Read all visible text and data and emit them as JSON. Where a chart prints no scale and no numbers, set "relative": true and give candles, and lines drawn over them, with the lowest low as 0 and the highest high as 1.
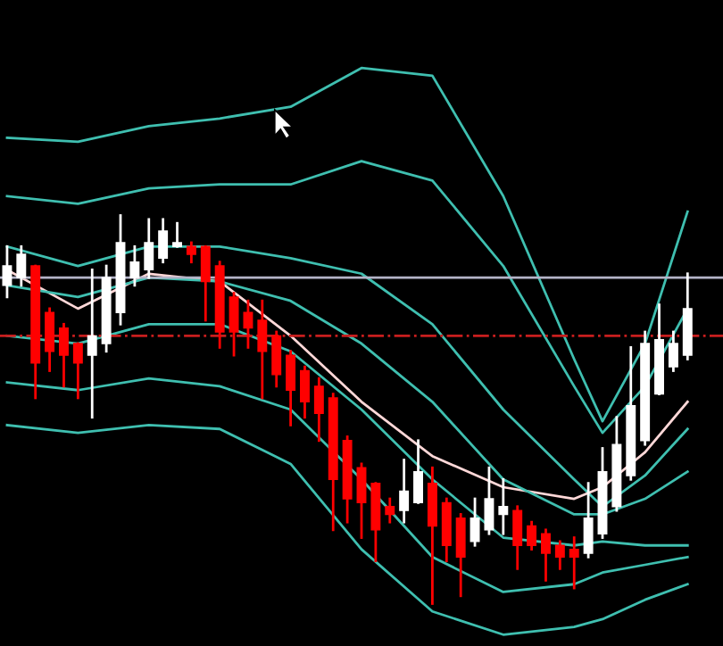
{
  "chart_data": {
    "type": "candlestick",
    "relative": true,
    "categories": [
      null,
      null,
      null,
      null,
      null,
      null,
      null,
      null,
      null,
      null,
      null,
      null,
      null,
      null,
      null,
      null,
      null,
      null,
      null,
      null,
      null,
      null,
      null,
      null,
      null,
      null,
      null,
      null,
      null,
      null,
      null,
      null,
      null,
      null,
      null,
      null,
      null,
      null,
      null,
      null,
      null,
      null,
      null,
      null,
      null,
      null,
      null,
      null,
      null
    ],
    "ohlc": [
      [
        0.82,
        0.92,
        0.79,
        0.87
      ],
      [
        0.84,
        0.92,
        0.82,
        0.9
      ],
      [
        0.87,
        0.87,
        0.53,
        0.62
      ],
      [
        0.75,
        0.76,
        0.6,
        0.65
      ],
      [
        0.71,
        0.72,
        0.56,
        0.64
      ],
      [
        0.67,
        0.67,
        0.53,
        0.62
      ],
      [
        0.64,
        0.86,
        0.48,
        0.69
      ],
      [
        0.67,
        0.87,
        0.65,
        0.84
      ],
      [
        0.75,
        1,
        0.72,
        0.93
      ],
      [
        0.84,
        0.92,
        0.82,
        0.88
      ],
      [
        0.86,
        0.99,
        0.84,
        0.93
      ],
      [
        0.89,
        0.99,
        0.88,
        0.96
      ],
      [
        0.92,
        0.98,
        0.92,
        0.93
      ],
      [
        0.92,
        0.93,
        0.88,
        0.9
      ],
      [
        0.92,
        0.92,
        0.73,
        0.83
      ],
      [
        0.87,
        0.88,
        0.66,
        0.7
      ],
      [
        0.79,
        0.8,
        0.64,
        0.7
      ],
      [
        0.75,
        0.78,
        0.66,
        0.71
      ],
      [
        0.73,
        0.78,
        0.53,
        0.65
      ],
      [
        0.69,
        0.7,
        0.56,
        0.59
      ],
      [
        0.64,
        0.65,
        0.46,
        0.55
      ],
      [
        0.6,
        0.61,
        0.48,
        0.52
      ],
      [
        0.56,
        0.58,
        0.42,
        0.49
      ],
      [
        0.53,
        0.54,
        0.19,
        0.32
      ],
      [
        0.42,
        0.43,
        0.21,
        0.27
      ],
      [
        0.35,
        0.36,
        0.17,
        0.26
      ],
      [
        0.31,
        0.31,
        0.11,
        0.19
      ],
      [
        0.25,
        0.27,
        0.21,
        0.23
      ],
      [
        0.24,
        0.37,
        0.21,
        0.29
      ],
      [
        0.26,
        0.42,
        0.26,
        0.34
      ],
      [
        0.31,
        0.35,
        0,
        0.2
      ],
      [
        0.26,
        0.27,
        0.11,
        0.15
      ],
      [
        0.22,
        0.23,
        0.02,
        0.12
      ],
      [
        0.16,
        0.27,
        0.15,
        0.22
      ],
      [
        0.19,
        0.35,
        0.18,
        0.27
      ],
      [
        0.23,
        0.32,
        0.18,
        0.25
      ],
      [
        0.24,
        0.25,
        0.09,
        0.15
      ],
      [
        0.2,
        0.21,
        0.14,
        0.15
      ],
      [
        0.18,
        0.19,
        0.06,
        0.13
      ],
      [
        0.15,
        0.16,
        0.09,
        0.12
      ],
      [
        0.14,
        0.17,
        0.04,
        0.12
      ],
      [
        0.13,
        0.31,
        0.12,
        0.22
      ],
      [
        0.18,
        0.4,
        0.17,
        0.34
      ],
      [
        0.25,
        0.48,
        0.24,
        0.41
      ],
      [
        0.33,
        0.66,
        0.32,
        0.51
      ],
      [
        0.42,
        0.7,
        0.41,
        0.67
      ],
      [
        0.54,
        0.77,
        0.54,
        0.68
      ],
      [
        0.61,
        0.7,
        0.6,
        0.67
      ],
      [
        0.64,
        0.85,
        0.63,
        0.76
      ]
    ],
    "colors": [
      "#ffffff",
      "#ffffff",
      "#ff0000",
      "#ff0000",
      "#ff0000",
      "#ff0000",
      "#ffffff",
      "#ffffff",
      "#ffffff",
      "#ffffff",
      "#ffffff",
      "#ffffff",
      "#ffffff",
      "#ff0000",
      "#ff0000",
      "#ff0000",
      "#ff0000",
      "#ff0000",
      "#ff0000",
      "#ff0000",
      "#ff0000",
      "#ff0000",
      "#ff0000",
      "#ff0000",
      "#ff0000",
      "#ff0000",
      "#ff0000",
      "#ff0000",
      "#ffffff",
      "#ffffff",
      "#ff0000",
      "#ff0000",
      "#ff0000",
      "#ffffff",
      "#ffffff",
      "#ffffff",
      "#ff0000",
      "#ff0000",
      "#ff0000",
      "#ff0000",
      "#ff0000",
      "#ffffff",
      "#ffffff",
      "#ffffff",
      "#ffffff",
      "#ffffff",
      "#ffffff",
      "#ffffff",
      "#ffffff"
    ],
    "series": [
      {
        "type": "line",
        "color": "#3fbfb0",
        "values": [
          1.2,
          null,
          null,
          null,
          null,
          1.19,
          null,
          null,
          null,
          null,
          1.23,
          null,
          null,
          null,
          null,
          1.25,
          null,
          null,
          null,
          null,
          1.28,
          null,
          null,
          null,
          null,
          1.38,
          null,
          null,
          null,
          null,
          1.36,
          null,
          null,
          null,
          null,
          1.05,
          null,
          null,
          null,
          null,
          0.63,
          null,
          0.47,
          null,
          null,
          0.67,
          null,
          null,
          1.01
        ]
      },
      {
        "type": "line",
        "color": "#3fbfb0",
        "values": [
          1.05,
          null,
          null,
          null,
          null,
          1.03,
          null,
          null,
          null,
          null,
          1.07,
          null,
          null,
          null,
          null,
          1.08,
          null,
          null,
          null,
          null,
          1.08,
          null,
          null,
          null,
          null,
          1.14,
          null,
          null,
          null,
          null,
          1.09,
          null,
          null,
          null,
          null,
          0.87,
          null,
          null,
          null,
          null,
          0.56,
          null,
          0.44,
          null,
          null,
          0.56,
          null,
          null,
          0.76
        ]
      },
      {
        "type": "line",
        "color": "#3fbfb0",
        "values": [
          0.92,
          null,
          null,
          null,
          null,
          0.87,
          null,
          null,
          null,
          null,
          0.92,
          null,
          null,
          null,
          null,
          0.92,
          null,
          null,
          null,
          null,
          0.89,
          null,
          null,
          null,
          null,
          0.85,
          null,
          null,
          null,
          null,
          0.72,
          null,
          null,
          null,
          null,
          0.5,
          null,
          null,
          null,
          null,
          0.32,
          null,
          0.25,
          null,
          null,
          0.33,
          null,
          null,
          0.45
        ]
      },
      {
        "type": "line",
        "color": "#ffd8d8",
        "values": [
          0.86,
          null,
          null,
          null,
          null,
          0.76,
          null,
          null,
          null,
          null,
          0.85,
          null,
          null,
          null,
          null,
          0.83,
          null,
          null,
          null,
          null,
          0.69,
          null,
          null,
          null,
          null,
          0.52,
          null,
          null,
          null,
          null,
          0.38,
          null,
          null,
          null,
          null,
          0.3,
          null,
          null,
          null,
          null,
          0.27,
          null,
          0.3,
          null,
          null,
          0.39,
          null,
          null,
          0.52
        ]
      },
      {
        "type": "line",
        "color": "#3fbfb0",
        "values": [
          0.82,
          null,
          null,
          null,
          null,
          0.79,
          null,
          null,
          null,
          null,
          0.84,
          null,
          null,
          null,
          null,
          0.83,
          null,
          null,
          null,
          null,
          0.78,
          null,
          null,
          null,
          null,
          0.67,
          null,
          null,
          null,
          null,
          0.52,
          null,
          null,
          null,
          null,
          0.32,
          null,
          null,
          null,
          null,
          0.23,
          null,
          0.23,
          null,
          null,
          0.27,
          null,
          null,
          0.34
        ]
      },
      {
        "type": "line",
        "color": "#3fbfb0",
        "values": [
          0.69,
          null,
          null,
          null,
          null,
          0.67,
          null,
          null,
          null,
          null,
          0.72,
          null,
          null,
          null,
          null,
          0.72,
          null,
          null,
          null,
          null,
          0.65,
          null,
          null,
          null,
          null,
          0.5,
          null,
          null,
          null,
          null,
          0.32,
          null,
          null,
          null,
          null,
          0.17,
          null,
          null,
          null,
          null,
          0.15,
          null,
          0.16,
          null,
          null,
          0.15,
          null,
          null,
          0.15
        ]
      },
      {
        "type": "line",
        "color": "#3fbfb0",
        "values": [
          0.57,
          null,
          null,
          null,
          null,
          0.55,
          null,
          null,
          null,
          null,
          0.58,
          null,
          null,
          null,
          null,
          0.56,
          null,
          null,
          null,
          null,
          0.5,
          null,
          null,
          null,
          null,
          0.32,
          null,
          null,
          null,
          null,
          0.12,
          null,
          null,
          null,
          null,
          0.03,
          null,
          null,
          null,
          null,
          0.05,
          null,
          0.08,
          null,
          null,
          0.1,
          null,
          null,
          0.12
        ]
      },
      {
        "type": "line",
        "color": "#3fbfb0",
        "values": [
          0.46,
          null,
          null,
          null,
          null,
          0.44,
          null,
          null,
          null,
          null,
          0.46,
          null,
          null,
          null,
          null,
          0.45,
          null,
          null,
          null,
          null,
          0.36,
          null,
          null,
          null,
          null,
          0.14,
          null,
          null,
          null,
          null,
          -0.02,
          null,
          null,
          null,
          null,
          -0.08,
          null,
          null,
          null,
          null,
          -0.06,
          null,
          -0.04,
          null,
          null,
          0.01,
          null,
          null,
          0.05
        ]
      }
    ],
    "ref_lines": [
      {
        "axis": "y",
        "value": 0.84,
        "color": "#b4b4c8",
        "line_style": "solid"
      },
      {
        "axis": "y",
        "value": 0.69,
        "color": "#c81e1e",
        "line_style": "dashdot"
      }
    ]
  }
}
